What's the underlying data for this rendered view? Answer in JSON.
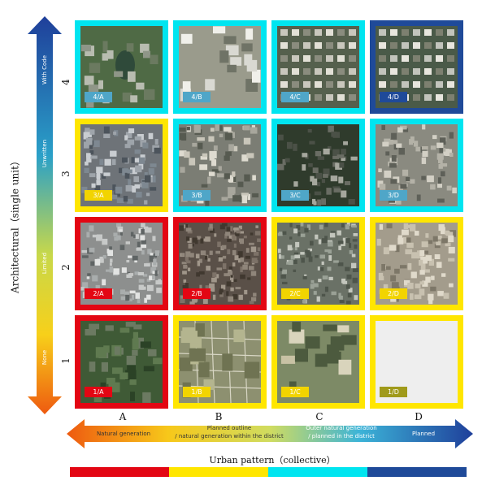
{
  "y_axis": {
    "title": "Architectural（single unit）",
    "levels": [
      "None",
      "Limited",
      "Unwritten",
      "With Code"
    ],
    "rows": [
      "4",
      "3",
      "2",
      "1"
    ]
  },
  "x_axis": {
    "title": "Urban pattern（collective）",
    "columns": [
      "A",
      "B",
      "C",
      "D"
    ],
    "levels": [
      {
        "line1": "Natural generation",
        "line2": ""
      },
      {
        "line1": "Planned outline",
        "line2": "/ natural generation within the district"
      },
      {
        "line1": "Outer natural generation",
        "line2": "/ planned in the district"
      },
      {
        "line1": "Planned",
        "line2": ""
      }
    ]
  },
  "colors": {
    "red": "#e30613",
    "yellow": "#ffe600",
    "cyan": "#00e5f0",
    "navy": "#1f4a99"
  },
  "colorbar": [
    "#e30613",
    "#ffe600",
    "#00e5f0",
    "#1f4a99"
  ],
  "cells": [
    {
      "label": "4/A",
      "frame": "#00e5f0",
      "tag_bg": "#4fa6c8",
      "scene": "green"
    },
    {
      "label": "4/B",
      "frame": "#00e5f0",
      "tag_bg": "#4fa6c8",
      "scene": "towers"
    },
    {
      "label": "4/C",
      "frame": "#00e5f0",
      "tag_bg": "#4fa6c8",
      "scene": "villas"
    },
    {
      "label": "4/D",
      "frame": "#1f4a99",
      "tag_bg": "#1f4a99",
      "scene": "villas-dark"
    },
    {
      "label": "3/A",
      "frame": "#ffe600",
      "tag_bg": "#f2d400",
      "scene": "dense-gray"
    },
    {
      "label": "3/B",
      "frame": "#00e5f0",
      "tag_bg": "#4fa6c8",
      "scene": "mixed"
    },
    {
      "label": "3/C",
      "frame": "#00e5f0",
      "tag_bg": "#4fa6c8",
      "scene": "dark-green"
    },
    {
      "label": "3/D",
      "frame": "#00e5f0",
      "tag_bg": "#4fa6c8",
      "scene": "blocks"
    },
    {
      "label": "2/A",
      "frame": "#e30613",
      "tag_bg": "#e30613",
      "scene": "dense-light"
    },
    {
      "label": "2/B",
      "frame": "#e30613",
      "tag_bg": "#e30613",
      "scene": "very-dense"
    },
    {
      "label": "2/C",
      "frame": "#ffe600",
      "tag_bg": "#f2d400",
      "scene": "slum"
    },
    {
      "label": "2/D",
      "frame": "#ffe600",
      "tag_bg": "#f2d400",
      "scene": "tan"
    },
    {
      "label": "1/A",
      "frame": "#e30613",
      "tag_bg": "#e30613",
      "scene": "forest"
    },
    {
      "label": "1/B",
      "frame": "#ffe600",
      "tag_bg": "#f2d400",
      "scene": "fields"
    },
    {
      "label": "1/C",
      "frame": "#ffe600",
      "tag_bg": "#f2d400",
      "scene": "site"
    },
    {
      "label": "1/D",
      "frame": "#ffe600",
      "tag_bg": "#a09a1a",
      "scene": "empty"
    }
  ]
}
